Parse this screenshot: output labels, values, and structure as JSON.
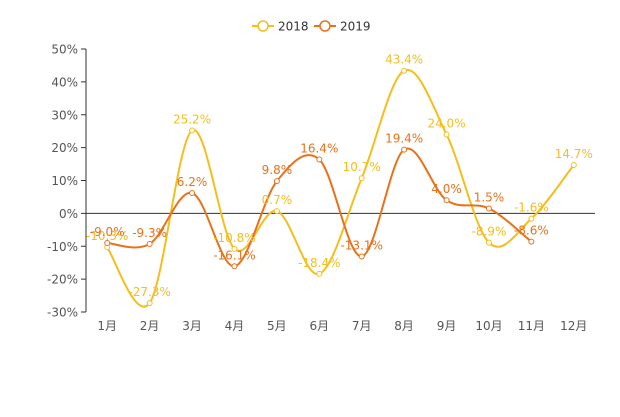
{
  "chart_data": {
    "type": "line",
    "smooth": true,
    "title": "",
    "xlabel": "",
    "ylabel": "",
    "categories": [
      "1月",
      "2月",
      "3月",
      "4月",
      "5月",
      "6月",
      "7月",
      "8月",
      "9月",
      "10月",
      "11月",
      "12月"
    ],
    "ylim": [
      -30,
      50
    ],
    "yticks": [
      -30,
      -20,
      -10,
      0,
      10,
      20,
      30,
      40,
      50
    ],
    "ytick_labels": [
      "-30%",
      "-20%",
      "-10%",
      "0%",
      "10%",
      "20%",
      "30%",
      "40%",
      "50%"
    ],
    "grid": false,
    "legend_position": "top-center",
    "series": [
      {
        "name": "2018",
        "color": "#F5BE1E",
        "values": [
          -10.3,
          -27.3,
          25.2,
          -10.8,
          0.7,
          -18.4,
          10.7,
          43.4,
          24.0,
          -8.9,
          -1.6,
          14.7
        ],
        "labels": [
          "-10.3%",
          "-27.3%",
          "25.2%",
          "-10.8%",
          "0.7%",
          "-18.4%",
          "10.7%",
          "43.4%",
          "24.0%",
          "-8.9%",
          "-1.6%",
          "14.7%"
        ]
      },
      {
        "name": "2019",
        "color": "#E8721C",
        "values": [
          -9.0,
          -9.3,
          6.2,
          -16.1,
          9.8,
          16.4,
          -13.1,
          19.4,
          4.0,
          1.5,
          -8.6,
          null
        ],
        "labels": [
          "-9.0%",
          "-9.3%",
          "6.2%",
          "-16.1%",
          "9.8%",
          "16.4%",
          "-13.1%",
          "19.4%",
          "4.0%",
          "1.5%",
          "-8.6%",
          ""
        ]
      }
    ]
  }
}
